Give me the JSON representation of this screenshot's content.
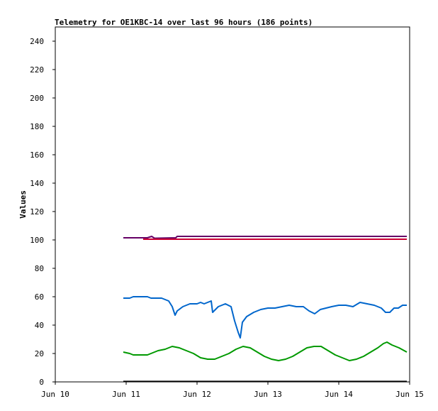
{
  "chart_data": {
    "type": "line",
    "title": "Telemetry for OE1KBC-14 over last 96 hours (186 points)",
    "xlabel": "",
    "ylabel": "Values",
    "xlim": [
      0,
      5
    ],
    "ylim": [
      0,
      250
    ],
    "yticks": [
      0,
      20,
      40,
      60,
      80,
      100,
      120,
      140,
      160,
      180,
      200,
      220,
      240
    ],
    "xticks": [
      {
        "value": 0,
        "label": "Jun 10"
      },
      {
        "value": 1,
        "label": "Jun 11"
      },
      {
        "value": 2,
        "label": "Jun 12"
      },
      {
        "value": 3,
        "label": "Jun 13"
      },
      {
        "value": 4,
        "label": "Jun 14"
      },
      {
        "value": 5,
        "label": "Jun 15"
      }
    ],
    "grid": false,
    "legend": "none",
    "series": [
      {
        "color": "#660066",
        "points": [
          [
            0.96,
            101.5
          ],
          [
            1.2,
            101.5
          ],
          [
            1.3,
            101.5
          ],
          [
            1.36,
            102.5
          ],
          [
            1.4,
            101.2
          ],
          [
            1.7,
            101.5
          ],
          [
            1.72,
            102.5
          ],
          [
            2.0,
            102.5
          ],
          [
            3.0,
            102.5
          ],
          [
            4.0,
            102.5
          ],
          [
            4.96,
            102.5
          ]
        ]
      },
      {
        "color": "#cc0033",
        "points": [
          [
            1.24,
            100.5
          ],
          [
            1.5,
            100.5
          ],
          [
            1.7,
            100.5
          ],
          [
            2.0,
            100.5
          ],
          [
            3.0,
            100.5
          ],
          [
            4.0,
            100.5
          ],
          [
            4.96,
            100.5
          ]
        ]
      },
      {
        "color": "#0066cc",
        "points": [
          [
            0.96,
            59
          ],
          [
            1.05,
            59
          ],
          [
            1.1,
            60
          ],
          [
            1.3,
            60
          ],
          [
            1.35,
            59
          ],
          [
            1.5,
            59
          ],
          [
            1.6,
            57
          ],
          [
            1.65,
            53
          ],
          [
            1.69,
            47
          ],
          [
            1.72,
            50
          ],
          [
            1.8,
            53
          ],
          [
            1.9,
            55
          ],
          [
            2.0,
            55
          ],
          [
            2.05,
            56
          ],
          [
            2.1,
            55
          ],
          [
            2.15,
            56
          ],
          [
            2.2,
            57
          ],
          [
            2.22,
            49
          ],
          [
            2.3,
            53
          ],
          [
            2.4,
            55
          ],
          [
            2.48,
            53
          ],
          [
            2.53,
            43
          ],
          [
            2.58,
            35
          ],
          [
            2.61,
            31
          ],
          [
            2.64,
            42
          ],
          [
            2.7,
            46
          ],
          [
            2.8,
            49
          ],
          [
            2.9,
            51
          ],
          [
            3.0,
            52
          ],
          [
            3.1,
            52
          ],
          [
            3.2,
            53
          ],
          [
            3.3,
            54
          ],
          [
            3.4,
            53
          ],
          [
            3.5,
            53
          ],
          [
            3.58,
            50
          ],
          [
            3.66,
            48
          ],
          [
            3.74,
            51
          ],
          [
            3.82,
            52
          ],
          [
            3.9,
            53
          ],
          [
            4.0,
            54
          ],
          [
            4.1,
            54
          ],
          [
            4.2,
            53
          ],
          [
            4.3,
            56
          ],
          [
            4.4,
            55
          ],
          [
            4.5,
            54
          ],
          [
            4.6,
            52
          ],
          [
            4.66,
            49
          ],
          [
            4.72,
            49
          ],
          [
            4.78,
            52
          ],
          [
            4.84,
            52
          ],
          [
            4.9,
            54
          ],
          [
            4.96,
            54
          ]
        ]
      },
      {
        "color": "#009900",
        "points": [
          [
            0.96,
            21
          ],
          [
            1.05,
            20
          ],
          [
            1.1,
            19
          ],
          [
            1.3,
            19
          ],
          [
            1.35,
            20
          ],
          [
            1.45,
            22
          ],
          [
            1.55,
            23
          ],
          [
            1.65,
            25
          ],
          [
            1.75,
            24
          ],
          [
            1.85,
            22
          ],
          [
            1.95,
            20
          ],
          [
            2.05,
            17
          ],
          [
            2.15,
            16
          ],
          [
            2.25,
            16
          ],
          [
            2.35,
            18
          ],
          [
            2.45,
            20
          ],
          [
            2.55,
            23
          ],
          [
            2.65,
            25
          ],
          [
            2.75,
            24
          ],
          [
            2.85,
            21
          ],
          [
            2.95,
            18
          ],
          [
            3.05,
            16
          ],
          [
            3.15,
            15
          ],
          [
            3.25,
            16
          ],
          [
            3.35,
            18
          ],
          [
            3.45,
            21
          ],
          [
            3.55,
            24
          ],
          [
            3.65,
            25
          ],
          [
            3.75,
            25
          ],
          [
            3.85,
            22
          ],
          [
            3.95,
            19
          ],
          [
            4.05,
            17
          ],
          [
            4.15,
            15
          ],
          [
            4.25,
            16
          ],
          [
            4.35,
            18
          ],
          [
            4.45,
            21
          ],
          [
            4.55,
            24
          ],
          [
            4.63,
            27
          ],
          [
            4.68,
            28
          ],
          [
            4.75,
            26
          ],
          [
            4.85,
            24
          ],
          [
            4.96,
            21
          ]
        ]
      },
      {
        "color": "#000000",
        "points": [
          [
            0.96,
            0.3
          ],
          [
            4.96,
            0.3
          ]
        ]
      }
    ]
  }
}
